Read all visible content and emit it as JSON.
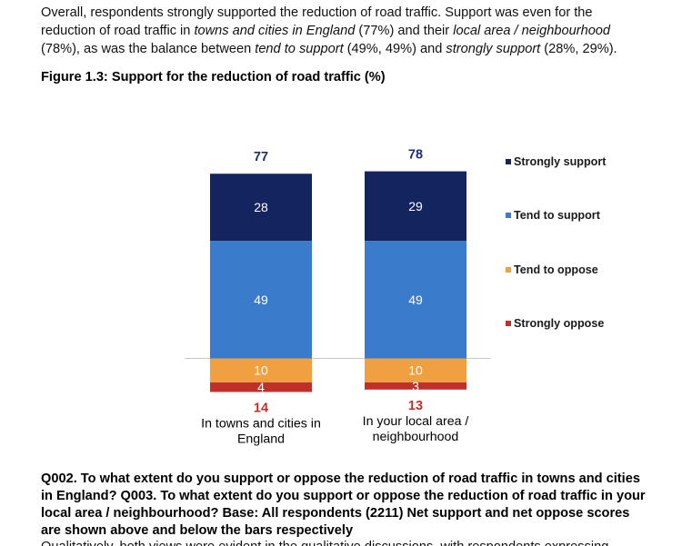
{
  "intro": {
    "s1": "Overall, respondents strongly supported the reduction of road traffic. Support was even for the reduction of road traffic in ",
    "e1": "towns and cities in England",
    "s2": " (77%) and their ",
    "e2": "local area / neighbourhood",
    "s3": " (78%), as was the balance between ",
    "e3": "tend to support",
    "s4": " (49%, 49%) and ",
    "e4": "strongly support",
    "s5": " (28%, 29%)."
  },
  "figure_title": "Figure 1.3: Support for the reduction of road traffic (%)",
  "chart_data": {
    "type": "bar",
    "stacked": true,
    "diverging": true,
    "categories": [
      "In towns and cities in England",
      "In your local area / neighbourhood"
    ],
    "category_lines": [
      [
        "In towns and cities in",
        "England"
      ],
      [
        "In your local area /",
        "neighbourhood"
      ]
    ],
    "series": [
      {
        "name": "Strongly support",
        "color": "#14245f",
        "values": [
          28,
          29
        ],
        "direction": "up"
      },
      {
        "name": "Tend to support",
        "color": "#3a7ccb",
        "values": [
          49,
          49
        ],
        "direction": "up"
      },
      {
        "name": "Tend to oppose",
        "color": "#f0a040",
        "values": [
          10,
          10
        ],
        "direction": "down"
      },
      {
        "name": "Strongly oppose",
        "color": "#c0302a",
        "values": [
          4,
          3
        ],
        "direction": "down"
      }
    ],
    "net_support": [
      "77",
      "78"
    ],
    "net_oppose": [
      "14",
      "13"
    ],
    "net_support_color": "#1f2f6b",
    "net_oppose_color": "#c0302a",
    "legend_position": "right",
    "grid": false
  },
  "question_text": "Q002. To what extent do you support or oppose the reduction of road traffic in towns and cities in England? Q003. To what extent do you support or oppose the reduction of road traffic in your local area / neighbourhood? Base: All respondents (2211) Net support and net oppose scores are shown above and below the bars respectively",
  "cutoff_text": "Qualitatively, both views were evident in the qualitative discussions, with respondents expressing..."
}
